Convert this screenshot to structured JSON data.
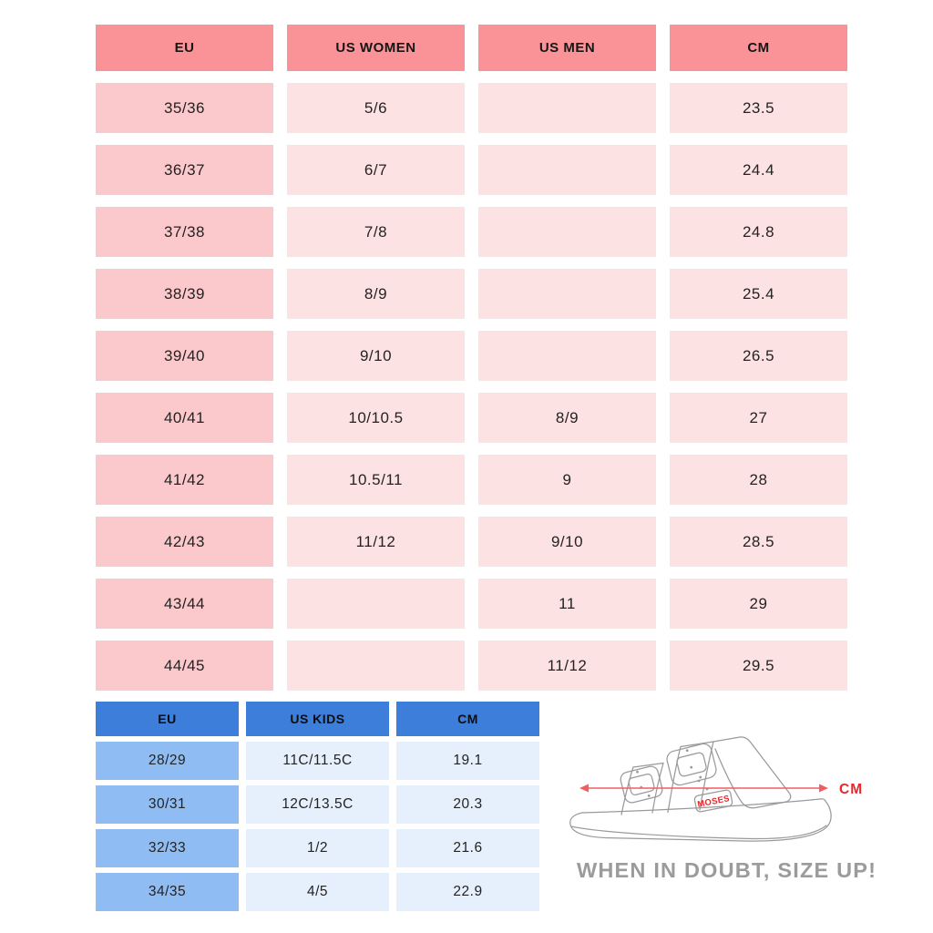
{
  "chart_data": [
    {
      "type": "table",
      "name": "adult-size-chart",
      "headers": [
        "EU",
        "US WOMEN",
        "US MEN",
        "CM"
      ],
      "rows": [
        [
          "35/36",
          "5/6",
          "",
          "23.5"
        ],
        [
          "36/37",
          "6/7",
          "",
          "24.4"
        ],
        [
          "37/38",
          "7/8",
          "",
          "24.8"
        ],
        [
          "38/39",
          "8/9",
          "",
          "25.4"
        ],
        [
          "39/40",
          "9/10",
          "",
          "26.5"
        ],
        [
          "40/41",
          "10/10.5",
          "8/9",
          "27"
        ],
        [
          "41/42",
          "10.5/11",
          "9",
          "28"
        ],
        [
          "42/43",
          "11/12",
          "9/10",
          "28.5"
        ],
        [
          "43/44",
          "",
          "11",
          "29"
        ],
        [
          "44/45",
          "",
          "11/12",
          "29.5"
        ]
      ],
      "colors": {
        "header_bg": "#fa9397",
        "first_column_bg": "#fbc9cc",
        "cell_bg": "#fde2e3",
        "text": "#232323"
      }
    },
    {
      "type": "table",
      "name": "kids-size-chart",
      "headers": [
        "EU",
        "US KIDS",
        "CM"
      ],
      "rows": [
        [
          "28/29",
          "11C/11.5C",
          "19.1"
        ],
        [
          "30/31",
          "12C/13.5C",
          "20.3"
        ],
        [
          "32/33",
          "1/2",
          "21.6"
        ],
        [
          "34/35",
          "4/5",
          "22.9"
        ]
      ],
      "colors": {
        "header_bg": "#3e7edb",
        "first_column_bg": "#8fbcf2",
        "cell_bg": "#e5f0fc",
        "text": "#232323"
      }
    }
  ],
  "illustration": {
    "measure_label": "CM",
    "logo_text": "MOSES",
    "caption": "WHEN IN DOUBT, SIZE UP!",
    "colors": {
      "outline": "#9a9a9a",
      "arrow": "#f15e62",
      "accent_red": "#e8262d",
      "caption_text": "#9b9b9b"
    }
  }
}
